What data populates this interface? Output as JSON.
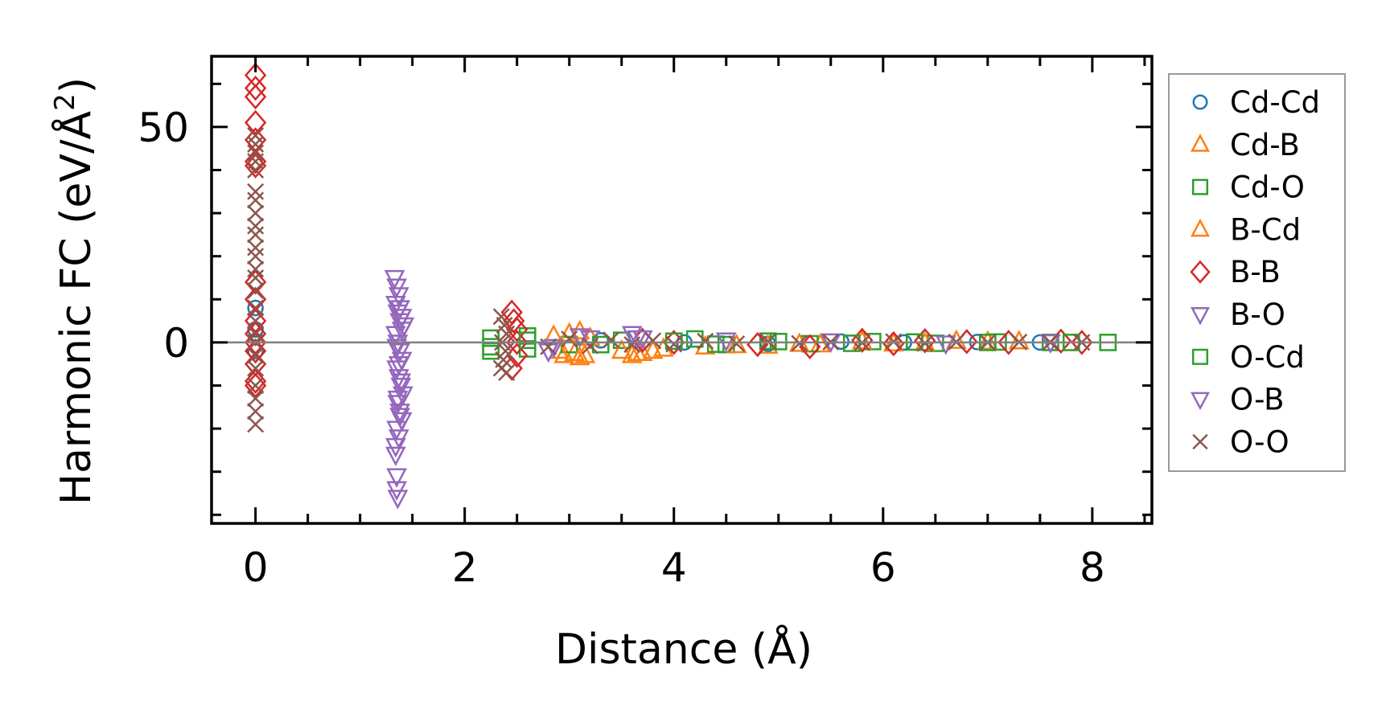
{
  "chart_data": {
    "type": "scatter",
    "title": "",
    "xlabel": "Distance (Å)",
    "ylabel_main": "Harmonic FC (eV/Å",
    "ylabel_sup": "2",
    "ylabel_close": ")",
    "xlim": [
      -0.42,
      8.57
    ],
    "ylim": [
      -42,
      66.4
    ],
    "xticks": [
      0,
      2,
      4,
      6,
      8
    ],
    "xtick_labels": [
      "0",
      "2",
      "4",
      "6",
      "8"
    ],
    "yticks": [
      0,
      50
    ],
    "ytick_labels": [
      "0",
      "50"
    ],
    "x_minor_step": 0.5,
    "y_minor_step": 10,
    "reference_line_y": 0,
    "reference_line_color": "#808080",
    "grid": false,
    "legend_position": "outside-right",
    "series": [
      {
        "name": "Cd-Cd",
        "marker": "circle",
        "color": "#1f77b4",
        "x": [
          0,
          0,
          0,
          3.3,
          4.1,
          4.9,
          5.6,
          6.2,
          6.9,
          7.5
        ],
        "y": [
          8,
          3,
          -2,
          0.5,
          0,
          -0.3,
          0.2,
          0,
          0.1,
          0
        ]
      },
      {
        "name": "Cd-B",
        "marker": "triangle-up",
        "color": "#ff7f0e",
        "x": [
          2.85,
          2.95,
          3.05,
          3.1,
          3.15,
          3.2,
          3.6,
          3.7,
          3.8,
          4.3,
          4.9,
          5.4,
          6.1,
          6.7,
          7.3
        ],
        "y": [
          1.5,
          -3,
          -2.5,
          2.5,
          -3,
          1,
          -3,
          -2.5,
          -2,
          -1,
          -0.8,
          -0.5,
          -0.3,
          0.3,
          0.2
        ]
      },
      {
        "name": "Cd-O",
        "marker": "square",
        "color": "#2ca02c",
        "x": [
          2.25,
          2.25,
          2.6,
          2.6,
          3.0,
          3.5,
          4.2,
          4.5,
          4.9,
          5.3,
          5.9,
          6.5,
          7.1,
          7.6,
          8.15
        ],
        "y": [
          1,
          -2,
          1.5,
          -1.5,
          -0.5,
          0.5,
          0.8,
          -0.5,
          0.3,
          -0.3,
          0.2,
          -0.2,
          0.1,
          0,
          0
        ]
      },
      {
        "name": "B-Cd",
        "marker": "triangle-up",
        "color": "#ff7f0e",
        "x": [
          2.9,
          3.0,
          3.1,
          3.5,
          3.65,
          3.9,
          4.6,
          5.2,
          5.8,
          6.4,
          7.0
        ],
        "y": [
          -2,
          2,
          -3.5,
          -2,
          -2.5,
          -1.5,
          -0.7,
          -0.4,
          0.2,
          -0.2,
          0.1
        ]
      },
      {
        "name": "B-B",
        "marker": "diamond",
        "color": "#d62728",
        "x": [
          0,
          0,
          0,
          0,
          0,
          0,
          0,
          0,
          0,
          0,
          0,
          0,
          0,
          0,
          0,
          0,
          2.45,
          2.47,
          2.5,
          2.5,
          2.5,
          2.45,
          3.7,
          4.0,
          4.8,
          5.3,
          5.8,
          6.1,
          6.4,
          6.8,
          7.2,
          7.7,
          7.9
        ],
        "y": [
          62,
          59,
          57,
          51,
          47,
          42,
          41,
          14,
          10,
          5,
          2,
          0,
          -2,
          -5,
          -9,
          -10,
          7,
          5,
          3,
          0,
          -3,
          -6,
          0.5,
          0,
          -0.5,
          -1,
          0.5,
          -0.3,
          0.4,
          0.2,
          0,
          0.3,
          0
        ]
      },
      {
        "name": "B-O",
        "marker": "triangle-down",
        "color": "#9467bd",
        "x": [
          1.33,
          1.35,
          1.37,
          1.38,
          1.4,
          1.42,
          1.34,
          1.36,
          1.38,
          1.4,
          1.35,
          1.37,
          1.39,
          1.41,
          1.36,
          1.38,
          1.4,
          1.35,
          1.37,
          1.34,
          1.35,
          1.36,
          2.8,
          3.2,
          3.6,
          3.65
        ],
        "y": [
          15,
          13,
          11,
          8,
          6,
          4,
          2,
          0,
          -2,
          -4,
          -6,
          -8,
          -10,
          -12,
          -14,
          -16,
          -18,
          -20,
          -22,
          -26,
          -31,
          -36,
          -2,
          1,
          2,
          1
        ]
      },
      {
        "name": "O-Cd",
        "marker": "square",
        "color": "#2ca02c",
        "x": [
          2.25,
          2.6,
          3.3,
          4.0,
          4.4,
          5.0,
          5.7,
          6.3,
          7.0,
          7.8
        ],
        "y": [
          -1,
          0.5,
          -0.5,
          0.3,
          -0.4,
          0.2,
          -0.2,
          0.1,
          0,
          0
        ]
      },
      {
        "name": "O-B",
        "marker": "triangle-down",
        "color": "#9467bd",
        "x": [
          1.34,
          1.36,
          1.38,
          1.4,
          1.35,
          1.37,
          1.39,
          1.36,
          1.38,
          1.34,
          1.35,
          2.85,
          3.1,
          3.7,
          4.5,
          5.5,
          6.6,
          7.6
        ],
        "y": [
          9,
          7,
          5,
          3,
          -1,
          -5,
          -9,
          -13,
          -17,
          -24,
          -34,
          -1,
          1.5,
          1,
          0.5,
          0.3,
          -0.2,
          0.1
        ]
      },
      {
        "name": "O-O",
        "marker": "x",
        "color": "#8c564b",
        "x": [
          0,
          0,
          0,
          0,
          0,
          0,
          0,
          0,
          0,
          0,
          0,
          0,
          0,
          0,
          0,
          0,
          0,
          0,
          0,
          0,
          0,
          0,
          0,
          0,
          0,
          2.35,
          2.38,
          2.4,
          2.36,
          2.39,
          2.37,
          2.35,
          2.4,
          2.8,
          3.0,
          3.2,
          3.4,
          3.6,
          3.8,
          4.0,
          4.3,
          4.6,
          4.9,
          5.2,
          5.5,
          5.8,
          6.1,
          6.4,
          6.7,
          7.0,
          7.3,
          7.6,
          7.9
        ],
        "y": [
          48,
          46,
          44,
          42,
          40,
          35,
          33,
          30,
          27,
          25,
          22,
          20,
          17,
          15,
          12,
          8,
          5,
          2,
          0,
          -3,
          -6,
          -10,
          -13,
          -16,
          -19,
          6,
          4,
          2,
          0,
          -2,
          -4,
          -6,
          -7,
          -1,
          0.8,
          -0.8,
          0.6,
          -0.5,
          0.4,
          -0.4,
          0.3,
          -0.3,
          0.2,
          -0.2,
          0.1,
          -0.1,
          0.2,
          -0.2,
          0.1,
          0,
          0.1,
          0,
          0
        ]
      }
    ]
  }
}
